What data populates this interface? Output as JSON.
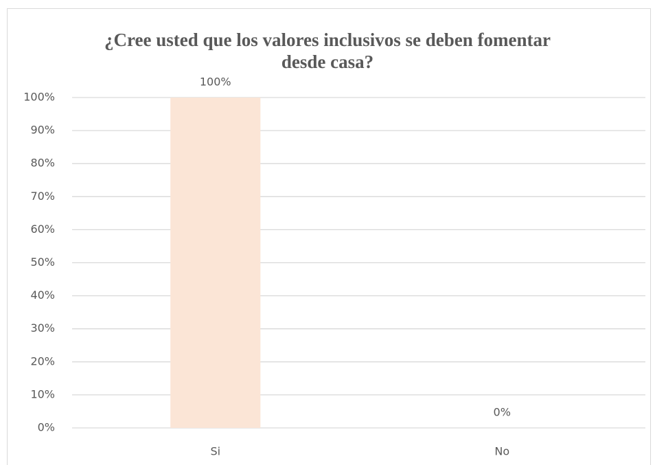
{
  "chart_data": {
    "type": "bar",
    "title": "¿Cree usted que los valores inclusivos se deben fomentar desde casa?",
    "categories": [
      "Si",
      "No"
    ],
    "values": [
      100,
      0
    ],
    "value_labels": [
      "100%",
      "0%"
    ],
    "color": "#fbe5d6",
    "ylim": [
      0,
      100
    ],
    "yticks": [
      {
        "value": 0,
        "label": "0%"
      },
      {
        "value": 10,
        "label": "10%"
      },
      {
        "value": 20,
        "label": "20%"
      },
      {
        "value": 30,
        "label": "30%"
      },
      {
        "value": 40,
        "label": "40%"
      },
      {
        "value": 50,
        "label": "50%"
      },
      {
        "value": 60,
        "label": "60%"
      },
      {
        "value": 70,
        "label": "70%"
      },
      {
        "value": 80,
        "label": "80%"
      },
      {
        "value": 90,
        "label": "90%"
      },
      {
        "value": 100,
        "label": "100%"
      }
    ],
    "grid": true
  }
}
